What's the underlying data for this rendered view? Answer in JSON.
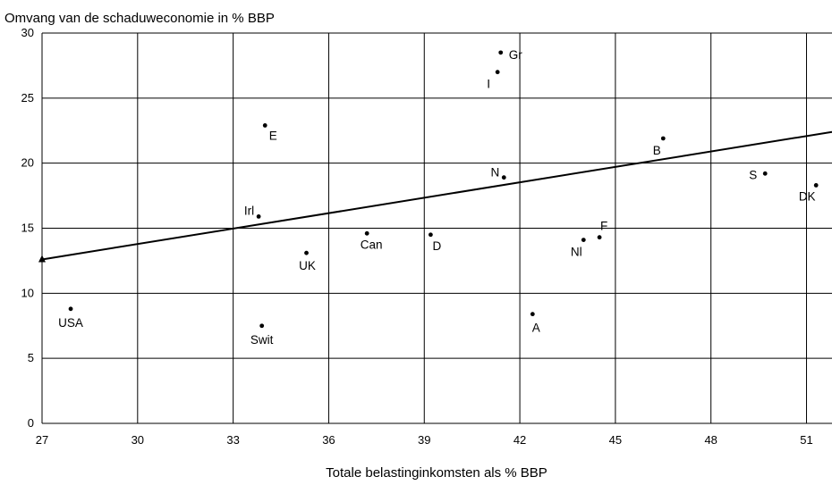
{
  "chart_data": {
    "type": "scatter",
    "title": "",
    "ylabel": "Omvang van de schaduweconomie in % BBP",
    "xlabel": "Totale belastinginkomsten als % BBP",
    "xlim": [
      27,
      51.8
    ],
    "ylim": [
      0,
      30
    ],
    "xticks": [
      27,
      30,
      33,
      36,
      39,
      42,
      45,
      48,
      51
    ],
    "yticks": [
      0,
      5,
      10,
      15,
      20,
      25,
      30
    ],
    "grid": true,
    "points": [
      {
        "label": "USA",
        "x": 27.9,
        "y": 8.8
      },
      {
        "label": "Swit",
        "x": 33.9,
        "y": 7.5
      },
      {
        "label": "Irl",
        "x": 33.8,
        "y": 15.9
      },
      {
        "label": "E",
        "x": 34.0,
        "y": 22.9
      },
      {
        "label": "UK",
        "x": 35.3,
        "y": 13.1
      },
      {
        "label": "Can",
        "x": 37.2,
        "y": 14.6
      },
      {
        "label": "D",
        "x": 39.2,
        "y": 14.5
      },
      {
        "label": "I",
        "x": 41.3,
        "y": 27.0
      },
      {
        "label": "Gr",
        "x": 41.4,
        "y": 28.5
      },
      {
        "label": "N",
        "x": 41.5,
        "y": 18.9
      },
      {
        "label": "A",
        "x": 42.4,
        "y": 8.4
      },
      {
        "label": "Nl",
        "x": 44.0,
        "y": 14.1
      },
      {
        "label": "F",
        "x": 44.5,
        "y": 14.3
      },
      {
        "label": "B",
        "x": 46.5,
        "y": 21.9
      },
      {
        "label": "S",
        "x": 49.7,
        "y": 19.2
      },
      {
        "label": "DK",
        "x": 51.3,
        "y": 18.3
      }
    ],
    "trendline": {
      "x": [
        27,
        51.8
      ],
      "y": [
        12.6,
        22.4
      ],
      "start_marker": "triangle"
    }
  }
}
